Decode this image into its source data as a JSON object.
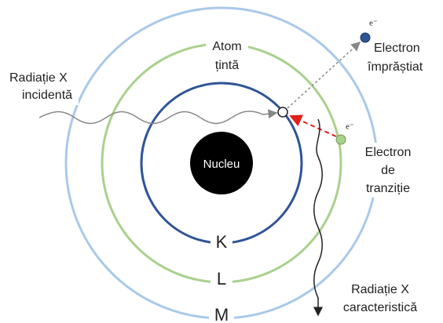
{
  "labels": {
    "atom": [
      "Atom",
      "țintă"
    ],
    "incident": [
      "Radiație X",
      "incidentă"
    ],
    "scattered": [
      "Electron",
      "împrăștiat"
    ],
    "transition": [
      "Electron",
      "de",
      "tranziție"
    ],
    "characteristic": [
      "Radiație X",
      "caracteristică"
    ],
    "nucleus": "Nucleu",
    "shells": [
      "K",
      "L",
      "M"
    ],
    "electron_symbol": "e⁻"
  }
}
